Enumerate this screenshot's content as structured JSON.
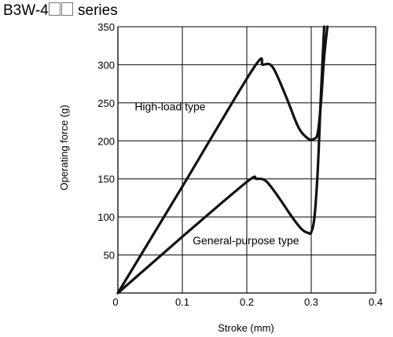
{
  "header": {
    "series_prefix": "B3W-4",
    "series_suffix": "series"
  },
  "chart_data": {
    "type": "line",
    "xlabel": "Stroke (mm)",
    "ylabel": "Operating force (g)",
    "xlim": [
      0,
      0.4
    ],
    "ylim": [
      0,
      350
    ],
    "x_ticks": [
      0,
      0.1,
      0.2,
      0.3,
      0.4
    ],
    "y_ticks": [
      0,
      50,
      100,
      150,
      200,
      250,
      300,
      350
    ],
    "x_tick_labels": [
      "0",
      "0.1",
      "0.2",
      "0.3",
      "0.4"
    ],
    "y_tick_labels": [
      "",
      "50",
      "100",
      "150",
      "200",
      "250",
      "300",
      "350"
    ],
    "grid": true,
    "series": [
      {
        "name": "High-load type",
        "x": [
          0,
          0.1,
          0.21,
          0.225,
          0.24,
          0.26,
          0.28,
          0.295,
          0.303,
          0.31,
          0.315,
          0.32,
          0.325
        ],
        "y": [
          0,
          140,
          295,
          300,
          297,
          260,
          218,
          203,
          202,
          210,
          250,
          310,
          350
        ]
      },
      {
        "name": "General-purpose type",
        "x": [
          0,
          0.1,
          0.2,
          0.215,
          0.23,
          0.25,
          0.27,
          0.285,
          0.295,
          0.3,
          0.305,
          0.31,
          0.315,
          0.32
        ],
        "y": [
          0,
          74,
          146,
          150,
          147,
          125,
          100,
          84,
          79,
          80,
          100,
          160,
          260,
          350
        ]
      }
    ],
    "annotations": [
      {
        "text": "High-load type",
        "x": 0.026,
        "y": 240
      },
      {
        "text": "General-purpose type",
        "x": 0.116,
        "y": 64
      }
    ]
  }
}
